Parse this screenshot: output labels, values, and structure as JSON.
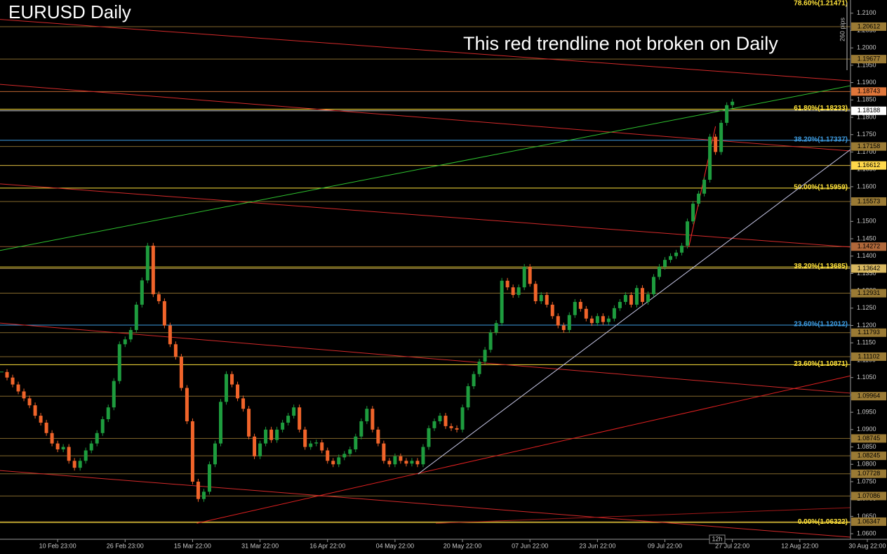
{
  "chart_data": {
    "type": "candlestick",
    "title": "EURUSD Daily",
    "annotation": "This red trendline not broken on Daily",
    "range_label": "260 pips",
    "timeframe_label": "12h",
    "up_color": "#1e9c3e",
    "down_color": "#f0642a",
    "values": [
      1.1066,
      1.105,
      1.103,
      1.101,
      1.099,
      1.097,
      1.094,
      1.092,
      1.089,
      1.086,
      1.0843,
      1.085,
      1.081,
      1.079,
      1.081,
      1.084,
      1.086,
      1.089,
      1.093,
      1.0964,
      1.104,
      1.1146,
      1.116,
      1.1187,
      1.126,
      1.133,
      1.143,
      1.129,
      1.127,
      1.12,
      1.1146,
      1.111,
      1.102,
      1.0924,
      1.075,
      1.07,
      1.0721,
      1.08,
      1.086,
      1.098,
      1.106,
      1.103,
      1.099,
      1.096,
      1.088,
      1.0823,
      1.086,
      1.09,
      1.087,
      1.09,
      1.092,
      1.094,
      1.0964,
      1.09,
      1.085,
      1.086,
      1.0863,
      1.084,
      1.081,
      1.08,
      1.082,
      1.083,
      1.0843,
      1.088,
      1.0924,
      1.096,
      1.09,
      1.086,
      1.081,
      1.08,
      1.0823,
      1.081,
      1.0802,
      1.081,
      1.08,
      1.085,
      1.0904,
      1.0924,
      1.094,
      1.091,
      1.0904,
      1.09,
      1.0964,
      1.1025,
      1.106,
      1.1096,
      1.113,
      1.118,
      1.1207,
      1.1329,
      1.131,
      1.1288,
      1.131,
      1.1369,
      1.132,
      1.127,
      1.1288,
      1.126,
      1.1227,
      1.12,
      1.1187,
      1.123,
      1.1268,
      1.1248,
      1.122,
      1.1207,
      1.1227,
      1.121,
      1.122,
      1.125,
      1.1268,
      1.1288,
      1.126,
      1.1308,
      1.1268,
      1.129,
      1.134,
      1.1369,
      1.1389,
      1.14,
      1.141,
      1.143,
      1.15,
      1.1551,
      1.158,
      1.162,
      1.1744,
      1.17,
      1.1784,
      1.1835,
      1.1845
    ],
    "xlim": [
      -0.25,
      157.5
    ],
    "xticks": [
      {
        "value": 10,
        "label": "10 Feb 23:00"
      },
      {
        "value": 22,
        "label": "26 Feb 23:00"
      },
      {
        "value": 34,
        "label": "15 Mar 22:00"
      },
      {
        "value": 46,
        "label": "31 Mar 22:00"
      },
      {
        "value": 58,
        "label": "16 Apr 22:00"
      },
      {
        "value": 70,
        "label": "04 May 22:00"
      },
      {
        "value": 82,
        "label": "20 May 22:00"
      },
      {
        "value": 94,
        "label": "07 Jun 22:00"
      },
      {
        "value": 106,
        "label": "23 Jun 22:00"
      },
      {
        "value": 118,
        "label": "09 Jul 22:00"
      },
      {
        "value": 130,
        "label": "27 Jul 22:00"
      },
      {
        "value": 142,
        "label": "12 Aug 22:00"
      },
      {
        "value": 154,
        "label": "30 Aug 22:00"
      }
    ],
    "ylim": [
      1.0584,
      1.2138
    ],
    "yticks": [
      {
        "value": 1.06,
        "label": "1.0600"
      },
      {
        "value": 1.065,
        "label": "1.0650"
      },
      {
        "value": 1.07,
        "label": "1.0700"
      },
      {
        "value": 1.075,
        "label": "1.0750"
      },
      {
        "value": 1.08,
        "label": "1.0800"
      },
      {
        "value": 1.085,
        "label": "1.0850"
      },
      {
        "value": 1.09,
        "label": "1.0900"
      },
      {
        "value": 1.095,
        "label": "1.0950"
      },
      {
        "value": 1.1,
        "label": "1.1000"
      },
      {
        "value": 1.105,
        "label": "1.1050"
      },
      {
        "value": 1.11,
        "label": "1.1100"
      },
      {
        "value": 1.115,
        "label": "1.1150"
      },
      {
        "value": 1.12,
        "label": "1.1200"
      },
      {
        "value": 1.125,
        "label": "1.1250"
      },
      {
        "value": 1.13,
        "label": "1.1300"
      },
      {
        "value": 1.135,
        "label": "1.1350"
      },
      {
        "value": 1.14,
        "label": "1.1400"
      },
      {
        "value": 1.145,
        "label": "1.1450"
      },
      {
        "value": 1.15,
        "label": "1.1500"
      },
      {
        "value": 1.155,
        "label": "1.1550"
      },
      {
        "value": 1.16,
        "label": "1.1600"
      },
      {
        "value": 1.165,
        "label": "1.1650"
      },
      {
        "value": 1.17,
        "label": "1.1700"
      },
      {
        "value": 1.175,
        "label": "1.1750"
      },
      {
        "value": 1.18,
        "label": "1.1800"
      },
      {
        "value": 1.185,
        "label": "1.1850"
      },
      {
        "value": 1.19,
        "label": "1.1900"
      },
      {
        "value": 1.195,
        "label": "1.1950"
      },
      {
        "value": 1.2,
        "label": "1.2000"
      },
      {
        "value": 1.205,
        "label": "1.2050"
      },
      {
        "value": 1.21,
        "label": "1.2100"
      }
    ],
    "levels": [
      1.20612,
      1.19677,
      1.18743,
      1.18188,
      1.17158,
      1.16612,
      1.15573,
      1.14272,
      1.13642,
      1.12931,
      1.11793,
      1.11102,
      1.09964,
      1.08745,
      1.08245,
      1.07728,
      1.07086,
      1.06347
    ],
    "level_colors": [
      "#9a7a34",
      "#9a7a34",
      "#e0763a",
      "#ffffff",
      "#9a7a34",
      "#ffd84a",
      "#9a7a34",
      "#b0683a",
      "#d8b860",
      "#9a7a34",
      "#9a7a34",
      "#9a7a34",
      "#9a7a34",
      "#9a7a34",
      "#9a7a34",
      "#9a7a34",
      "#9a7a34",
      "#9a7a34"
    ],
    "fib_levels": [
      {
        "value": 1.21471,
        "label": "78.60%(1.21471)",
        "color": "#ffe23a"
      },
      {
        "value": 1.18233,
        "label": "61.80%(1.18233)",
        "color": "#ffe23a"
      },
      {
        "value": 1.17337,
        "label": "38.20%(1.17337)",
        "color": "#3d9be0"
      },
      {
        "value": 1.15959,
        "label": "50.00%(1.15959)",
        "color": "#ffe23a"
      },
      {
        "value": 1.13685,
        "label": "38.20%(1.13685)",
        "color": "#ffe23a"
      },
      {
        "value": 1.12012,
        "label": "23.60%(1.12012)",
        "color": "#3d9be0"
      },
      {
        "value": 1.10871,
        "label": "23.60%(1.10871)",
        "color": "#ffe23a"
      },
      {
        "value": 1.06322,
        "label": "0.00%(1.06322)",
        "color": "#ffe23a"
      }
    ],
    "trendlines": [
      {
        "color": "#d42a2a",
        "x": [
          -0.25,
          151
        ],
        "y": [
          1.2082,
          1.1905
        ]
      },
      {
        "color": "#d42a2a",
        "x": [
          -0.25,
          151
        ],
        "y": [
          1.1895,
          1.1703
        ]
      },
      {
        "color": "#d42a2a",
        "x": [
          -0.25,
          151
        ],
        "y": [
          1.1608,
          1.1426
        ]
      },
      {
        "color": "#d42a2a",
        "x": [
          -0.25,
          151
        ],
        "y": [
          1.1207,
          1.1005
        ]
      },
      {
        "color": "#d42a2a",
        "x": [
          -0.25,
          151
        ],
        "y": [
          1.0782,
          1.059
        ]
      },
      {
        "color": "#e02020",
        "x": [
          34.75,
          151
        ],
        "y": [
          1.063,
          1.1055
        ]
      },
      {
        "color": "#a01818",
        "x": [
          77.25,
          151
        ],
        "y": [
          1.063,
          1.0675
        ]
      },
      {
        "color": "#2fc42f",
        "x": [
          -0.25,
          151
        ],
        "y": [
          1.1416,
          1.1891
        ]
      },
      {
        "color": "#c8c8e8",
        "x": [
          74.1,
          151
        ],
        "y": [
          1.0772,
          1.1707
        ]
      },
      {
        "color": "#ff2a2a",
        "x": [
          122.25,
          127
        ],
        "y": [
          1.1426,
          1.1774
        ]
      }
    ]
  }
}
